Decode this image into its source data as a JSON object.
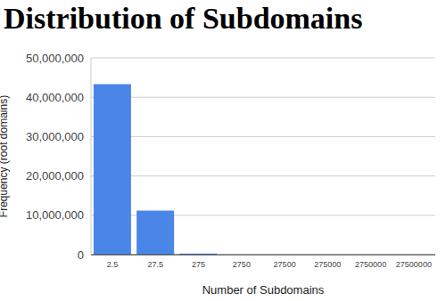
{
  "chart_data": {
    "type": "bar",
    "title": "Distribution of Subdomains",
    "x_label": "Number of Subdomains",
    "y_label": "Frequency (root domains)",
    "categories": [
      "2.5",
      "27.5",
      "275",
      "2750",
      "27500",
      "275000",
      "2750000",
      "27500000"
    ],
    "values": [
      43300000,
      11200000,
      300000,
      20000,
      2000,
      200,
      20,
      2
    ],
    "color": "#4a86e8",
    "ylim": [
      0,
      50000000
    ],
    "yticks": [
      {
        "value": 0,
        "label": "0"
      },
      {
        "value": 10000000,
        "label": "10,000,000"
      },
      {
        "value": 20000000,
        "label": "20,000,000"
      },
      {
        "value": 30000000,
        "label": "30,000,000"
      },
      {
        "value": 40000000,
        "label": "40,000,000"
      },
      {
        "value": 50000000,
        "label": "50,000,000"
      }
    ],
    "grid": true
  }
}
